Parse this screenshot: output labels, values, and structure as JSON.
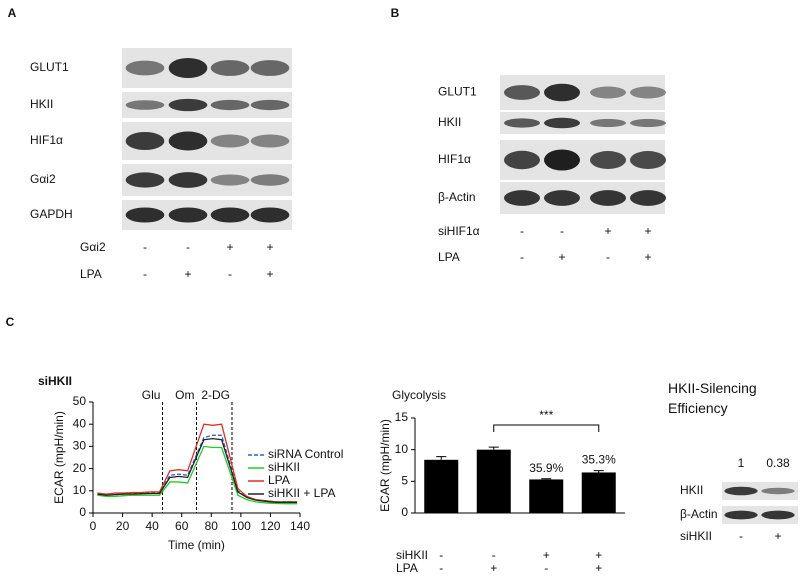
{
  "panels": {
    "a": "A",
    "b": "B",
    "c": "C"
  },
  "blot_a": {
    "rows": [
      "GLUT1",
      "HKII",
      "HIF1α",
      "Gαi2",
      "GAPDH"
    ],
    "conditions": [
      {
        "label": "Gαi2",
        "marks": [
          "-",
          "-",
          "+",
          "+"
        ]
      },
      {
        "label": "LPA",
        "marks": [
          "-",
          "+",
          "-",
          "+"
        ]
      }
    ]
  },
  "blot_b": {
    "rows": [
      "GLUT1",
      "HKII",
      "HIF1α",
      "β-Actin"
    ],
    "conditions": [
      {
        "label": "siHIF1α",
        "marks": [
          "-",
          "-",
          "+",
          "+"
        ]
      },
      {
        "label": "LPA",
        "marks": [
          "-",
          "+",
          "-",
          "+"
        ]
      }
    ]
  },
  "blot_c": {
    "title": "HKII-Silencing Efficiency",
    "ratios": [
      1,
      0.38
    ],
    "rows": [
      "HKII",
      "β-Actin"
    ],
    "conditions": [
      {
        "label": "siHKII",
        "marks": [
          "-",
          "+"
        ]
      }
    ]
  },
  "chart_data": [
    {
      "type": "line",
      "title": "siHKII",
      "x_label": "Time (min)",
      "y_label": "ECAR (mpH/min)",
      "x": [
        3,
        9,
        15,
        21,
        27,
        33,
        39,
        45,
        52,
        58,
        64,
        75,
        81,
        87,
        98,
        104,
        110,
        117,
        124,
        131,
        138
      ],
      "xlim": [
        0,
        140
      ],
      "xticks": [
        0,
        20,
        40,
        60,
        80,
        100,
        120,
        140
      ],
      "ylim": [
        0,
        50
      ],
      "yticks": [
        0,
        10,
        20,
        30,
        40,
        50
      ],
      "legend": "right",
      "annotations": [
        {
          "text": "Glu",
          "x": 47
        },
        {
          "text": "Om",
          "x": 70
        },
        {
          "text": "2-DG",
          "x": 94
        }
      ],
      "series": [
        {
          "name": "siRNA Control",
          "color": "#2f5fd0",
          "dashed": true,
          "values": [
            8.5,
            8,
            8.3,
            8.5,
            8.7,
            8.8,
            9,
            9,
            17,
            17.5,
            17,
            34,
            35,
            35,
            10,
            7,
            6,
            5.5,
            5,
            5,
            5
          ]
        },
        {
          "name": "siHKII",
          "color": "#22cc22",
          "values": [
            8,
            7.5,
            7.5,
            7.8,
            8,
            8,
            8,
            8,
            14,
            14,
            13.5,
            30,
            29.5,
            29.5,
            8,
            6,
            5,
            4.5,
            4.3,
            4.2,
            4.2
          ]
        },
        {
          "name": "LPA",
          "color": "#e03020",
          "values": [
            9,
            8.5,
            9,
            9,
            9.2,
            9.3,
            9.5,
            9.5,
            19,
            19.5,
            19,
            40,
            39.5,
            40,
            11,
            7.5,
            6,
            5.5,
            5,
            5,
            5
          ]
        },
        {
          "name": "siHKII + LPA",
          "color": "#222222",
          "values": [
            8.5,
            8,
            8.3,
            8.5,
            8.5,
            8.7,
            8.8,
            8.8,
            16,
            16.5,
            16,
            33,
            33.5,
            33,
            9.5,
            7,
            5.8,
            5.2,
            4.8,
            4.8,
            4.8
          ]
        }
      ]
    },
    {
      "type": "bar",
      "title": "Glycolysis",
      "y_label": "ECAR (mpH/min)",
      "values": [
        8.4,
        10,
        5.3,
        6.4
      ],
      "errors": [
        0.5,
        0.4,
        0.1,
        0.3
      ],
      "color": "#000000",
      "ylim": [
        0,
        15
      ],
      "yticks": [
        0,
        5,
        10,
        15
      ],
      "annotations": [
        "35.9%",
        "35.3%"
      ],
      "significance": "***",
      "conditions": [
        {
          "label": "siHKII",
          "marks": [
            "-",
            "-",
            "+",
            "+"
          ]
        },
        {
          "label": "LPA",
          "marks": [
            "-",
            "+",
            "-",
            "+"
          ]
        }
      ]
    }
  ]
}
